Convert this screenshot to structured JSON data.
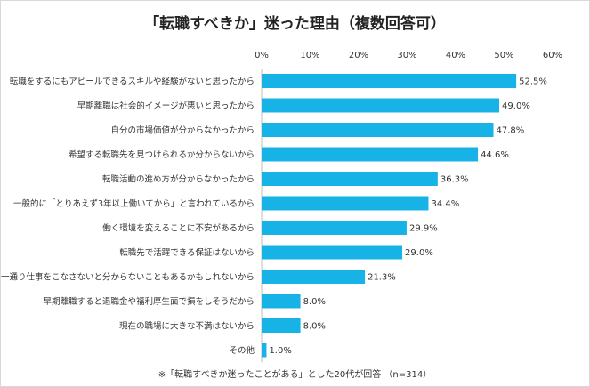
{
  "chart_data": {
    "type": "bar",
    "orientation": "horizontal",
    "title": "「転職すべきか」迷った理由（複数回答可）",
    "footnote": "※「転職すべきか迷ったことがある」とした20代が回答 （n=314）",
    "xlim": [
      0,
      60
    ],
    "ticks": [
      0,
      10,
      20,
      30,
      40,
      50,
      60
    ],
    "tick_labels": [
      "0%",
      "10%",
      "20%",
      "30%",
      "40%",
      "50%",
      "60%"
    ],
    "bar_color": "#18b3e6",
    "categories": [
      "転職をするにもアピールできるスキルや経験がないと思ったから",
      "早期離職は社会的イメージが悪いと思ったから",
      "自分の市場価値が分からなかったから",
      "希望する転職先を見つけられるか分からないから",
      "転職活動の進め方が分からなかったから",
      "一般的に「とりあえず3年以上働いてから」と言われているから",
      "働く環境を変えることに不安があるから",
      "転職先で活躍できる保証はないから",
      "一通り仕事をこなさないと分からないこともあるかもしれないから",
      "早期離職すると退職金や福利厚生面で損をしそうだから",
      "現在の職場に大きな不満はないから",
      "その他"
    ],
    "values": [
      52.5,
      49.0,
      47.8,
      44.6,
      36.3,
      34.4,
      29.9,
      29.0,
      21.3,
      8.0,
      8.0,
      1.0
    ],
    "value_labels": [
      "52.5%",
      "49.0%",
      "47.8%",
      "44.6%",
      "36.3%",
      "34.4%",
      "29.9%",
      "29.0%",
      "21.3%",
      "8.0%",
      "8.0%",
      "1.0%"
    ]
  }
}
